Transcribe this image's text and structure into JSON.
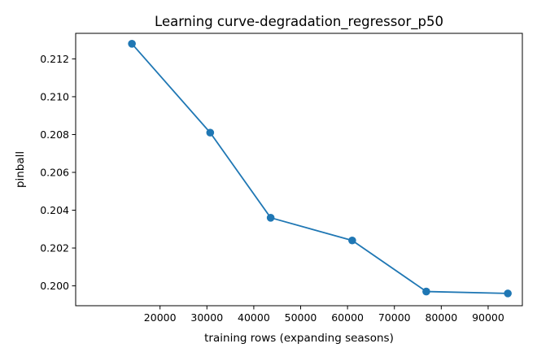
{
  "chart_data": {
    "type": "line",
    "title": "Learning curve-degradation_regressor_p50",
    "xlabel": "training rows (expanding seasons)",
    "ylabel": "pinball",
    "x": [
      14000,
      30700,
      43600,
      61000,
      76800,
      94200
    ],
    "series": [
      {
        "values": [
          0.2128,
          0.2081,
          0.2036,
          0.2024,
          0.1997,
          0.1996
        ],
        "color": "#1f77b4",
        "marker": "circle"
      }
    ],
    "xlim": [
      2000,
      97300
    ],
    "ylim": [
      0.19895,
      0.21335
    ],
    "xticks": [
      20000,
      30000,
      40000,
      50000,
      60000,
      70000,
      80000,
      90000
    ],
    "xtick_labels": [
      "20000",
      "30000",
      "40000",
      "50000",
      "60000",
      "70000",
      "80000",
      "90000"
    ],
    "yticks": [
      0.2,
      0.202,
      0.204,
      0.206,
      0.208,
      0.21,
      0.212
    ],
    "ytick_labels": [
      "0.200",
      "0.202",
      "0.204",
      "0.206",
      "0.208",
      "0.210",
      "0.212"
    ],
    "grid": false,
    "legend": "none"
  }
}
